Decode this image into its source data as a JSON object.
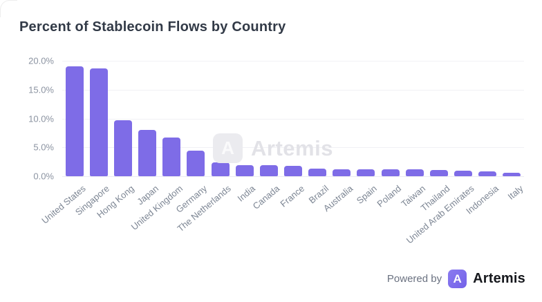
{
  "title": "Percent of Stablecoin Flows by Country",
  "watermark": {
    "text": "Artemis",
    "icon": "artemis-logo-icon",
    "icon_glyph": "A"
  },
  "footer": {
    "powered_by": "Powered by",
    "brand": "Artemis",
    "logo_icon": "artemis-logo-icon",
    "logo_glyph": "A"
  },
  "colors": {
    "bar": "#7e6ce7",
    "title_text": "#323a47",
    "axis_label": "#8b93a1",
    "x_label": "#7d8694",
    "gridline": "#f1f1f5",
    "watermark_gray": "#e2e2e7",
    "brand_purple": "#7c6bee",
    "background": "#ffffff"
  },
  "chart_data": {
    "type": "bar",
    "title": "Percent of Stablecoin Flows by Country",
    "xlabel": "",
    "ylabel": "",
    "ylim": [
      0,
      20
    ],
    "yticks": [
      "0.0%",
      "5.0%",
      "10.0%",
      "15.0%",
      "20.0%"
    ],
    "ytick_values": [
      0,
      5,
      10,
      15,
      20
    ],
    "grid": true,
    "legend": false,
    "bar_color": "#7e6ce7",
    "categories": [
      "United States",
      "Singapore",
      "Hong Kong",
      "Japan",
      "United Kingdom",
      "Germany",
      "The Netherlands",
      "India",
      "Canada",
      "France",
      "Brazil",
      "Australia",
      "Spain",
      "Poland",
      "Taiwan",
      "Thailand",
      "United Arab Emirates",
      "Indonesia",
      "Italy"
    ],
    "values": [
      19.0,
      18.7,
      9.7,
      8.0,
      6.7,
      4.4,
      2.4,
      1.9,
      1.9,
      1.8,
      1.3,
      1.2,
      1.2,
      1.2,
      1.2,
      1.1,
      1.0,
      0.8,
      0.6
    ]
  }
}
